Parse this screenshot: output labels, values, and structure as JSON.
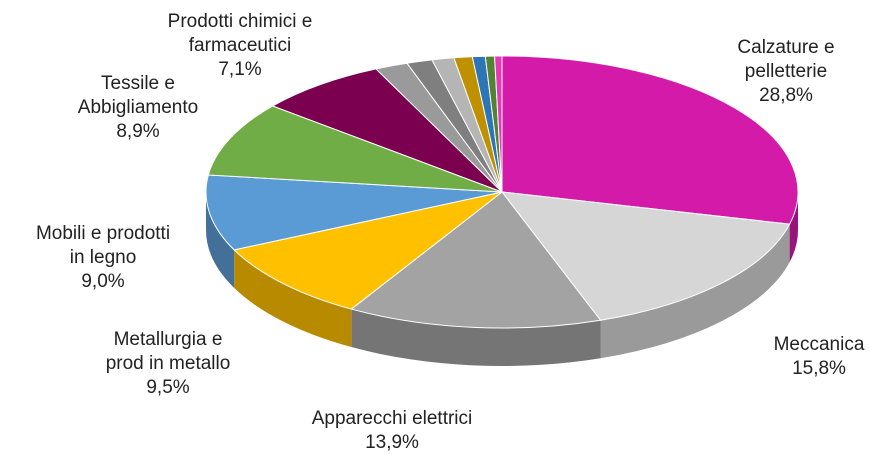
{
  "chart_data": {
    "type": "pie",
    "style": "3d",
    "title": "",
    "slices": [
      {
        "name": "Calzature e pelletterie",
        "value": 28.8,
        "color": "#d41aa9",
        "label": [
          "Calzature e",
          "pelletterie",
          "28,8%"
        ]
      },
      {
        "name": "Meccanica",
        "value": 15.8,
        "color": "#d6d6d6",
        "label": [
          "Meccanica",
          "15,8%"
        ]
      },
      {
        "name": "Apparecchi elettrici",
        "value": 13.9,
        "color": "#a3a3a3",
        "label": [
          "Apparecchi elettrici",
          "13,9%"
        ]
      },
      {
        "name": "Metallurgia e prod in metallo",
        "value": 9.5,
        "color": "#ffc000",
        "label": [
          "Metallurgia e",
          "prod in metallo",
          "9,5%"
        ]
      },
      {
        "name": "Mobili e prodotti in legno",
        "value": 9.0,
        "color": "#5b9bd5",
        "label": [
          "Mobili e prodotti",
          "in legno",
          "9,0%"
        ]
      },
      {
        "name": "Tessile e Abbigliamento",
        "value": 8.9,
        "color": "#70ad47",
        "label": [
          "Tessile e",
          "Abbigliamento",
          "8,9%"
        ]
      },
      {
        "name": "Prodotti chimici e farmaceutici",
        "value": 7.1,
        "color": "#7b0050",
        "label": [
          "Prodotti chimici e",
          "farmaceutici",
          "7,1%"
        ]
      },
      {
        "name": "",
        "value": 1.8,
        "color": "#9a9a9a",
        "label": []
      },
      {
        "name": "",
        "value": 1.4,
        "color": "#7f7f7f",
        "label": []
      },
      {
        "name": "",
        "value": 1.2,
        "color": "#b5b5b5",
        "label": []
      },
      {
        "name": "",
        "value": 1.0,
        "color": "#bf9000",
        "label": []
      },
      {
        "name": "",
        "value": 0.7,
        "color": "#2e75b6",
        "label": []
      },
      {
        "name": "",
        "value": 0.5,
        "color": "#548235",
        "label": []
      },
      {
        "name": "",
        "value": 0.4,
        "color": "#e13ab4",
        "label": []
      }
    ]
  }
}
